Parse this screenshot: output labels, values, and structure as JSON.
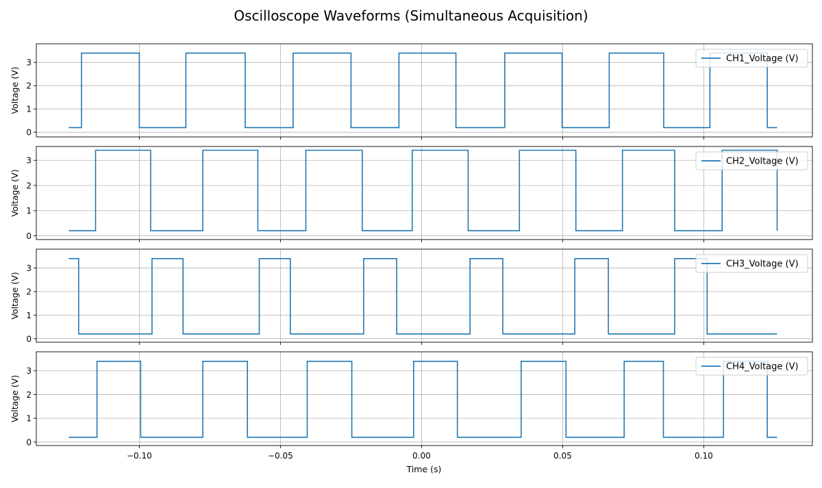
{
  "chart_data": {
    "type": "line",
    "title": "Oscilloscope Waveforms (Simultaneous Acquisition)",
    "xlabel": "Time (s)",
    "ylabel": "Voltage (V)",
    "xlim": [
      -0.1365,
      0.1385
    ],
    "xticks": [
      -0.1,
      -0.05,
      0.0,
      0.05,
      0.1
    ],
    "xtick_labels": [
      "−0.10",
      "−0.05",
      "0.00",
      "0.05",
      "0.10"
    ],
    "yticks": [
      0,
      1,
      2,
      3
    ],
    "grid": true,
    "legend_position": "upper right",
    "line_color": "#1f77b4",
    "high_level": 3.4,
    "low_level": 0.2,
    "series": [
      {
        "name": "CH1_Voltage (V)",
        "ylim": [
          -0.2,
          3.8
        ],
        "start_level": "low",
        "x_start": -0.125,
        "x_end": 0.126,
        "transitions": [
          -0.1205,
          -0.1,
          -0.0835,
          -0.0625,
          -0.0455,
          -0.025,
          -0.008,
          0.0122,
          0.0295,
          0.0498,
          0.0665,
          0.0858,
          0.1022,
          0.1225
        ]
      },
      {
        "name": "CH2_Voltage (V)",
        "ylim": [
          -0.15,
          3.55
        ],
        "start_level": "low",
        "x_start": -0.125,
        "x_end": 0.126,
        "transitions": [
          -0.1155,
          -0.096,
          -0.0775,
          -0.058,
          -0.041,
          -0.021,
          -0.0033,
          0.0165,
          0.0347,
          0.0547,
          0.0712,
          0.0897,
          0.1065,
          0.126
        ]
      },
      {
        "name": "CH3_Voltage (V)",
        "ylim": [
          -0.15,
          3.8
        ],
        "start_level": "high",
        "x_start": -0.125,
        "x_end": 0.126,
        "transitions": [
          -0.1215,
          -0.0955,
          -0.0845,
          -0.0575,
          -0.0465,
          -0.0205,
          -0.0088,
          0.0172,
          0.0288,
          0.0543,
          0.0662,
          0.0897,
          0.1012
        ]
      },
      {
        "name": "CH4_Voltage (V)",
        "ylim": [
          -0.15,
          3.8
        ],
        "start_level": "low",
        "x_start": -0.125,
        "x_end": 0.126,
        "transitions": [
          -0.115,
          -0.0995,
          -0.0775,
          -0.0617,
          -0.0405,
          -0.0247,
          -0.0028,
          0.0127,
          0.0353,
          0.0512,
          0.0718,
          0.0857,
          0.107,
          0.1225
        ]
      }
    ]
  }
}
